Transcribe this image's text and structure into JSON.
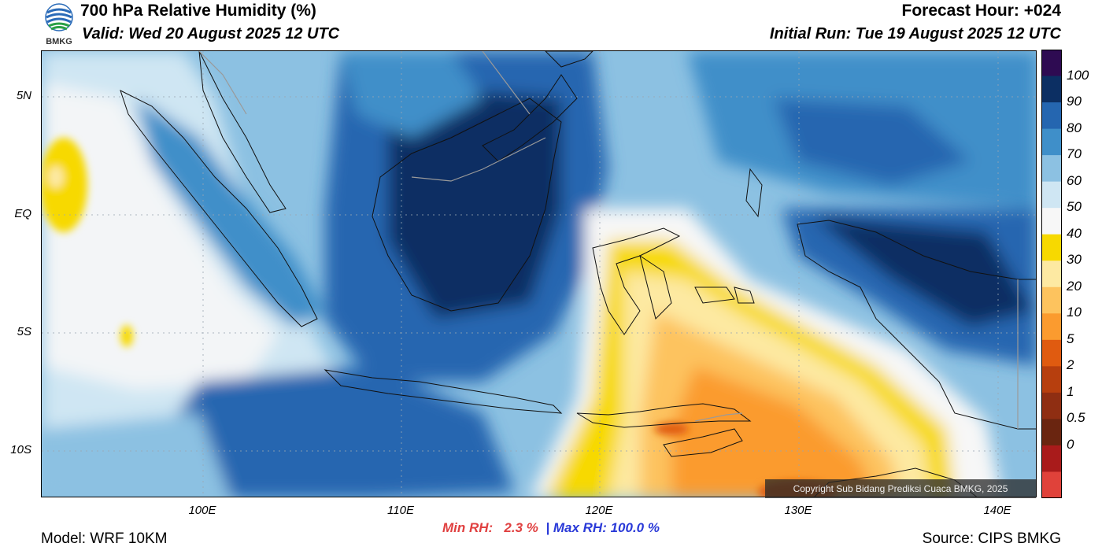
{
  "header": {
    "title": "700 hPa Relative Humidity (%)",
    "valid": "Valid: Wed 20 August 2025 12 UTC",
    "forecast_hour": "Forecast Hour: +024",
    "initial_run": "Initial Run: Tue 19 August 2025 12 UTC",
    "logo_text": "BMKG"
  },
  "map": {
    "lat_labels": [
      "5N",
      "EQ",
      "5S",
      "10S"
    ],
    "lon_labels": [
      "100E",
      "110E",
      "120E",
      "130E",
      "140E"
    ],
    "copyright": "Copyright Sub Bidang Prediksi Cuaca BMKG, 2025"
  },
  "stats": {
    "min_label": "Min RH:",
    "min_value": "2.3 %",
    "separator": "|",
    "max_label": "Max RH:",
    "max_value": "100.0 %"
  },
  "footer": {
    "model": "Model: WRF 10KM",
    "source": "Source: CIPS BMKG"
  },
  "colorbar": {
    "labels": [
      "100",
      "90",
      "80",
      "70",
      "60",
      "50",
      "40",
      "30",
      "20",
      "10",
      "5",
      "2",
      "1",
      "0.5",
      "0"
    ],
    "colors": [
      "#2e0b52",
      "#0c2f63",
      "#2566b0",
      "#3f8fc9",
      "#8cc1e2",
      "#cfe6f3",
      "#f7f7f7",
      "#f7d900",
      "#fde9a2",
      "#fdc35e",
      "#fb9b2f",
      "#e05b10",
      "#b73f0e",
      "#8f2e12",
      "#6a2510",
      "#a91b1b",
      "#e0423a"
    ]
  }
}
